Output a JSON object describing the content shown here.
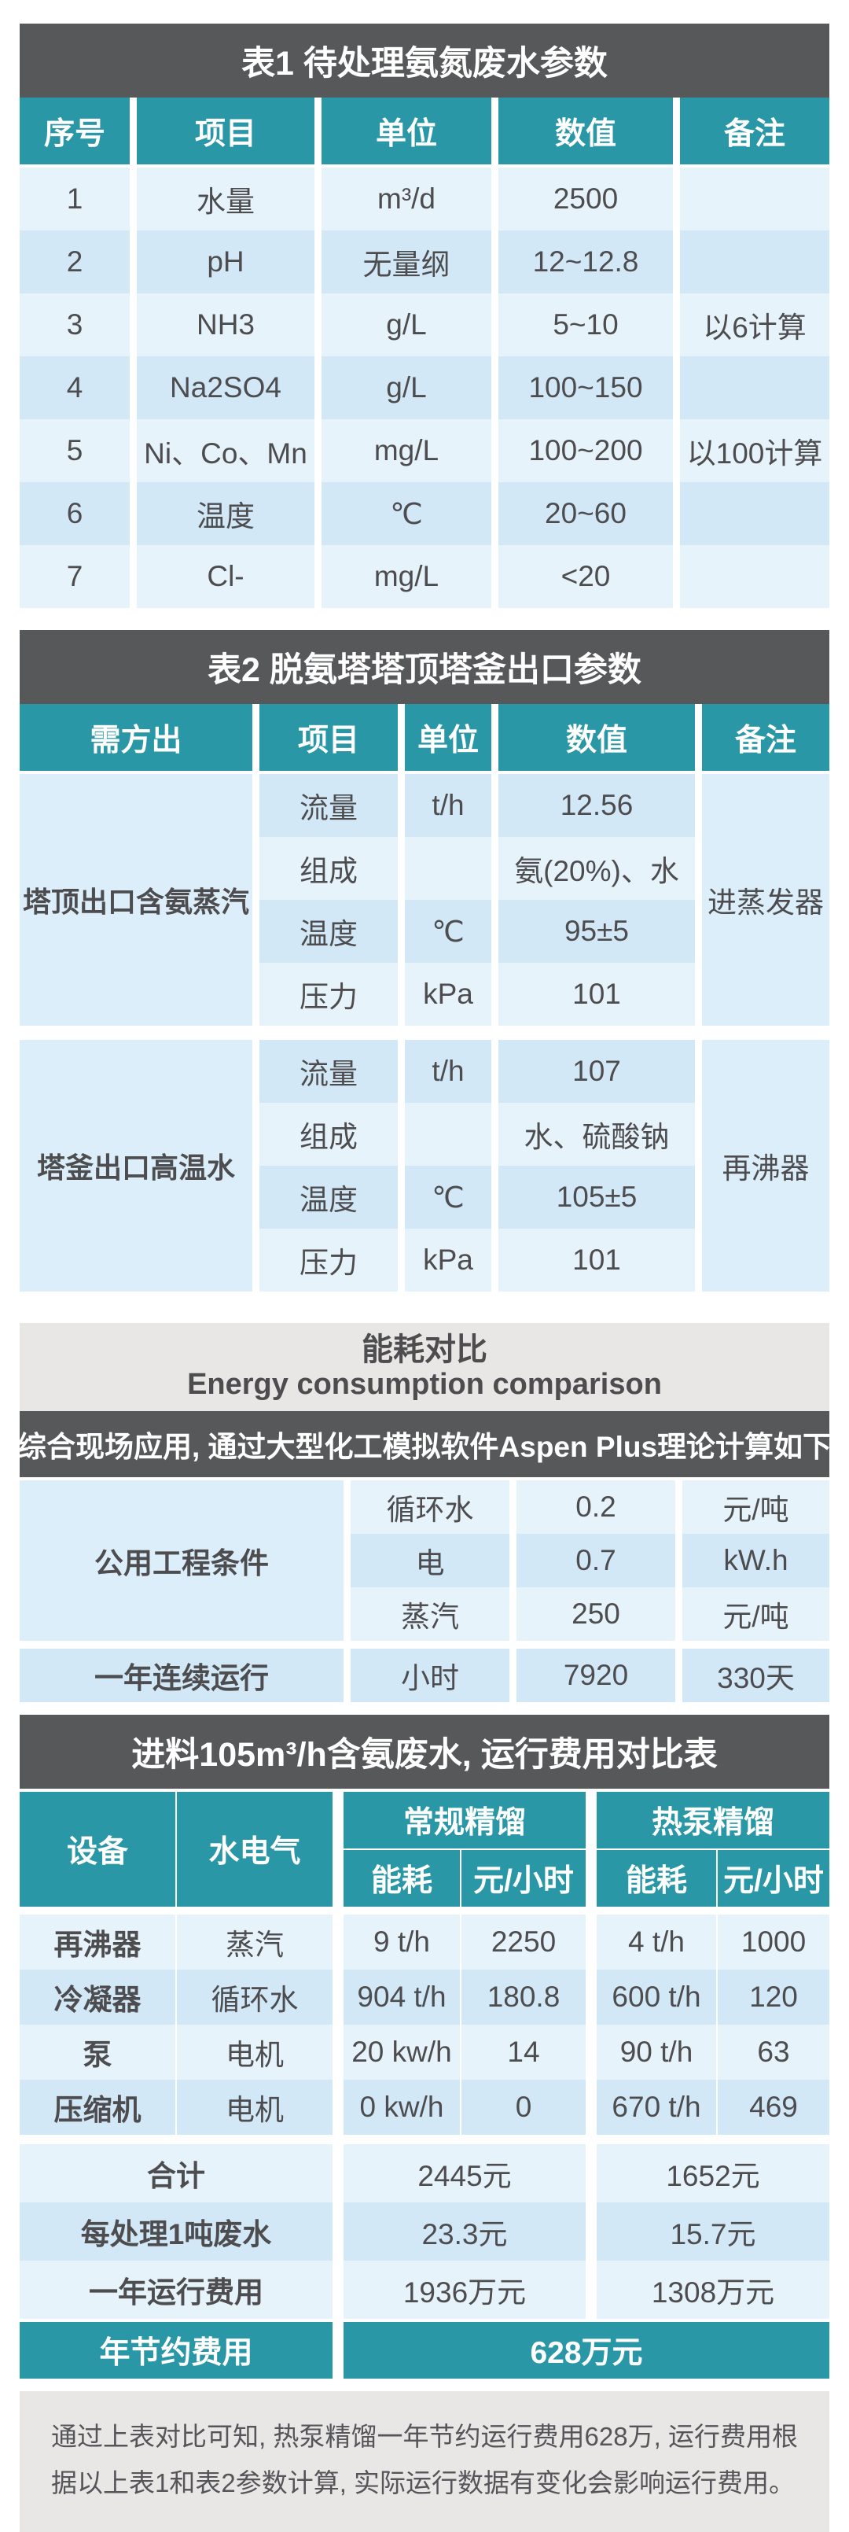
{
  "table1": {
    "title": "表1  待处理氨氮废水参数",
    "headers": [
      "序号",
      "项目",
      "单位",
      "数值",
      "备注"
    ],
    "rows": [
      {
        "no": "1",
        "item": "水量",
        "unit": "m³/d",
        "value": "2500",
        "note": ""
      },
      {
        "no": "2",
        "item": "pH",
        "unit": "无量纲",
        "value": "12~12.8",
        "note": ""
      },
      {
        "no": "3",
        "item": "NH3",
        "unit": "g/L",
        "value": "5~10",
        "note": "以6计算"
      },
      {
        "no": "4",
        "item": "Na2SO4",
        "unit": "g/L",
        "value": "100~150",
        "note": ""
      },
      {
        "no": "5",
        "item": "Ni、Co、Mn",
        "unit": "mg/L",
        "value": "100~200",
        "note": "以100计算"
      },
      {
        "no": "6",
        "item": "温度",
        "unit": "℃",
        "value": "20~60",
        "note": ""
      },
      {
        "no": "7",
        "item": "Cl-",
        "unit": "mg/L",
        "value": "<20",
        "note": ""
      }
    ]
  },
  "table2": {
    "title": "表2  脱氨塔塔顶塔釜出口参数",
    "headers": [
      "需方出",
      "项目",
      "单位",
      "数值",
      "备注"
    ],
    "groups": [
      {
        "label": "塔顶出口含氨蒸汽",
        "note": "进蒸发器",
        "rows": [
          {
            "item": "流量",
            "unit": "t/h",
            "value": "12.56"
          },
          {
            "item": "组成",
            "unit": "",
            "value": "氨(20%)、水"
          },
          {
            "item": "温度",
            "unit": "℃",
            "value": "95±5"
          },
          {
            "item": "压力",
            "unit": "kPa",
            "value": "101"
          }
        ]
      },
      {
        "label": "塔釜出口高温水",
        "note": "再沸器",
        "rows": [
          {
            "item": "流量",
            "unit": "t/h",
            "value": "107"
          },
          {
            "item": "组成",
            "unit": "",
            "value": "水、硫酸钠"
          },
          {
            "item": "温度",
            "unit": "℃",
            "value": "105±5"
          },
          {
            "item": "压力",
            "unit": "kPa",
            "value": "101"
          }
        ]
      }
    ]
  },
  "energy": {
    "title_cn": "能耗对比",
    "title_en": "Energy consumption comparison",
    "subtitle": "综合现场应用, 通过大型化工模拟软件Aspen Plus理论计算如下",
    "group_label": "公用工程条件",
    "rows": [
      {
        "item": "循环水",
        "value": "0.2",
        "unit": "元/吨"
      },
      {
        "item": "电",
        "value": "0.7",
        "unit": "kW.h"
      },
      {
        "item": "蒸汽",
        "value": "250",
        "unit": "元/吨"
      }
    ],
    "run_row": {
      "label": "一年连续运行",
      "item": "小时",
      "value": "7920",
      "unit": "330天"
    }
  },
  "table4": {
    "title": "进料105m³/h含氨废水, 运行费用对比表",
    "headers": {
      "device": "设备",
      "utility": "水电气",
      "conventional": "常规精馏",
      "heatpump": "热泵精馏",
      "energy": "能耗",
      "cost": "元/小时"
    },
    "rows": [
      {
        "device": "再沸器",
        "utility": "蒸汽",
        "c_energy": "9 t/h",
        "c_cost": "2250",
        "h_energy": "4 t/h",
        "h_cost": "1000"
      },
      {
        "device": "冷凝器",
        "utility": "循环水",
        "c_energy": "904 t/h",
        "c_cost": "180.8",
        "h_energy": "600 t/h",
        "h_cost": "120"
      },
      {
        "device": "泵",
        "utility": "电机",
        "c_energy": "20 kw/h",
        "c_cost": "14",
        "h_energy": "90 t/h",
        "h_cost": "63"
      },
      {
        "device": "压缩机",
        "utility": "电机",
        "c_energy": "0 kw/h",
        "c_cost": "0",
        "h_energy": "670 t/h",
        "h_cost": "469"
      }
    ],
    "summary": [
      {
        "label": "合计",
        "conventional": "2445元",
        "heatpump": "1652元"
      },
      {
        "label": "每处理1吨废水",
        "conventional": "23.3元",
        "heatpump": "15.7元"
      },
      {
        "label": "一年运行费用",
        "conventional": "1936万元",
        "heatpump": "1308万元"
      }
    ],
    "savings": {
      "label": "年节约费用",
      "value": "628万元"
    }
  },
  "footer": {
    "note": "通过上表对比可知, 热泵精馏一年节约运行费用628万, 运行费用根据以上表1和表2参数计算, 实际运行数据有变化会影响运行费用。"
  },
  "colors": {
    "teal": "#2997a6",
    "dark_gray": "#57585a",
    "row_light": "#e7f3fb",
    "row_dark": "#d3e8f7",
    "span_cell": "#dceef9",
    "gray_block": "#e8e7e5"
  }
}
